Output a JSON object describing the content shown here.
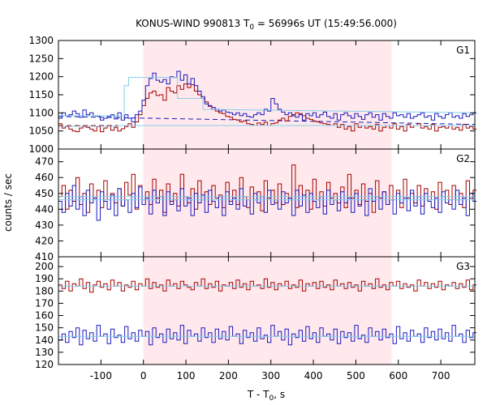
{
  "chart_data": {
    "type": "line",
    "title_main": "KONUS-WIND 990813 T",
    "title_sub": "0",
    "title_rest": " = 56996s UT (15:49:56.000)",
    "xlabel_main": "T - T",
    "xlabel_sub": "0",
    "xlabel_rest": ", s",
    "ylabel": "counts / sec",
    "xlim": [
      -200,
      780
    ],
    "xticks": [
      -100,
      0,
      100,
      200,
      300,
      400,
      500,
      600,
      700
    ],
    "xtick_labels": [
      "-100",
      "0",
      "100",
      "200",
      "300",
      "400",
      "500",
      "600",
      "700"
    ],
    "shaded_interval": [
      0,
      584
    ],
    "colors": {
      "red": "#a50000",
      "blue": "#1a1abf",
      "fit": "#87ceeb",
      "shade": "#ffe9ec"
    },
    "bin_width": 8.2,
    "x_start": -200,
    "panels": [
      {
        "label": "G1",
        "ylim": [
          1000,
          1300
        ],
        "yticks": [
          1000,
          1050,
          1100,
          1150,
          1200,
          1250,
          1300
        ],
        "ytick_labels": [
          "1000",
          "1050",
          "1100",
          "1150",
          "1200",
          "1250",
          "1300"
        ],
        "red_fit": [
          [
            -200,
            1063
          ],
          [
            -60,
            1063
          ],
          [
            -60,
            1065
          ],
          [
            780,
            1065
          ]
        ],
        "blue_fit": [
          [
            -200,
            1092
          ],
          [
            -45,
            1092
          ],
          [
            -45,
            1175
          ],
          [
            -35,
            1175
          ],
          [
            -35,
            1198
          ],
          [
            80,
            1198
          ],
          [
            80,
            1140
          ],
          [
            140,
            1140
          ],
          [
            140,
            1110
          ],
          [
            780,
            1100
          ]
        ],
        "red_background": [
          [
            -200,
            1065
          ],
          [
            780,
            1065
          ]
        ],
        "blue_background": [
          [
            -200,
            1090
          ],
          [
            780,
            1068
          ]
        ],
        "red": [
          1070,
          1058,
          1062,
          1055,
          1050,
          1048,
          1058,
          1062,
          1060,
          1055,
          1050,
          1062,
          1048,
          1058,
          1065,
          1052,
          1060,
          1050,
          1056,
          1062,
          1070,
          1060,
          1075,
          1095,
          1120,
          1140,
          1155,
          1160,
          1148,
          1150,
          1135,
          1170,
          1160,
          1155,
          1175,
          1165,
          1180,
          1170,
          1178,
          1160,
          1150,
          1140,
          1130,
          1118,
          1110,
          1105,
          1100,
          1098,
          1090,
          1088,
          1082,
          1080,
          1075,
          1078,
          1070,
          1068,
          1065,
          1072,
          1068,
          1074,
          1065,
          1070,
          1072,
          1080,
          1085,
          1078,
          1090,
          1095,
          1100,
          1098,
          1092,
          1085,
          1082,
          1078,
          1075,
          1072,
          1070,
          1068,
          1065,
          1070,
          1060,
          1068,
          1055,
          1062,
          1050,
          1070,
          1060,
          1065,
          1058,
          1062,
          1055,
          1068,
          1050,
          1060,
          1065,
          1058,
          1070,
          1055,
          1062,
          1050,
          1068,
          1060,
          1065,
          1070,
          1058,
          1062,
          1055,
          1068,
          1050,
          1060,
          1062,
          1058,
          1065,
          1055,
          1060,
          1052,
          1068,
          1058,
          1062,
          1055
        ],
        "blue": [
          1085,
          1100,
          1092,
          1095,
          1105,
          1098,
          1088,
          1108,
          1095,
          1100,
          1092,
          1090,
          1080,
          1085,
          1090,
          1095,
          1083,
          1100,
          1080,
          1095,
          1085,
          1075,
          1095,
          1105,
          1135,
          1175,
          1195,
          1210,
          1190,
          1185,
          1192,
          1180,
          1200,
          1198,
          1215,
          1190,
          1205,
          1180,
          1195,
          1175,
          1160,
          1145,
          1125,
          1120,
          1115,
          1110,
          1105,
          1108,
          1102,
          1100,
          1095,
          1100,
          1092,
          1098,
          1090,
          1088,
          1095,
          1100,
          1095,
          1110,
          1105,
          1140,
          1125,
          1110,
          1102,
          1095,
          1100,
          1092,
          1088,
          1095,
          1080,
          1098,
          1092,
          1100,
          1088,
          1095,
          1102,
          1090,
          1085,
          1098,
          1080,
          1095,
          1100,
          1092,
          1085,
          1098,
          1090,
          1082,
          1095,
          1100,
          1088,
          1095,
          1080,
          1098,
          1090,
          1085,
          1100,
          1092,
          1095,
          1088,
          1098,
          1085,
          1090,
          1095,
          1100,
          1088,
          1092,
          1080,
          1098,
          1090,
          1085,
          1095,
          1100,
          1088,
          1092,
          1085,
          1098,
          1090,
          1095,
          1100
        ]
      },
      {
        "label": "G2",
        "ylim": [
          410,
          478
        ],
        "yticks": [
          410,
          420,
          430,
          440,
          450,
          460,
          470
        ],
        "ytick_labels": [
          "410",
          "420",
          "430",
          "440",
          "450",
          "460",
          "470"
        ],
        "red_fit": [
          [
            -200,
            448
          ],
          [
            780,
            448
          ]
        ],
        "blue_fit": [
          [
            -200,
            446
          ],
          [
            780,
            446
          ]
        ],
        "red": [
          448,
          455,
          440,
          452,
          445,
          460,
          443,
          450,
          438,
          456,
          447,
          452,
          441,
          458,
          446,
          450,
          444,
          453,
          442,
          457,
          449,
          462,
          440,
          455,
          446,
          451,
          443,
          459,
          447,
          452,
          438,
          456,
          445,
          450,
          442,
          462,
          448,
          444,
          453,
          440,
          458,
          446,
          451,
          443,
          455,
          447,
          449,
          441,
          457,
          445,
          452,
          443,
          460,
          448,
          441,
          454,
          446,
          451,
          439,
          458,
          447,
          452,
          444,
          456,
          443,
          450,
          446,
          468,
          441,
          455,
          448,
          452,
          440,
          459,
          446,
          451,
          442,
          457,
          447,
          450,
          444,
          454,
          441,
          462,
          447,
          452,
          443,
          456,
          445,
          450,
          438,
          458,
          447,
          451,
          443,
          455,
          446,
          452,
          441,
          459,
          447,
          450,
          444,
          455,
          442,
          453,
          446,
          451,
          440,
          457,
          448,
          452,
          443,
          455,
          446,
          450,
          441,
          458,
          447,
          452
        ],
        "blue": [
          445,
          438,
          450,
          442,
          455,
          440,
          448,
          436,
          452,
          444,
          447,
          433,
          451,
          445,
          440,
          449,
          436,
          453,
          442,
          446,
          438,
          450,
          441,
          454,
          443,
          447,
          437,
          452,
          444,
          448,
          436,
          451,
          443,
          446,
          439,
          453,
          442,
          447,
          436,
          450,
          444,
          449,
          438,
          452,
          445,
          441,
          448,
          436,
          451,
          443,
          447,
          440,
          453,
          442,
          446,
          437,
          450,
          444,
          448,
          438,
          452,
          443,
          446,
          440,
          451,
          444,
          447,
          436,
          452,
          442,
          449,
          438,
          450,
          445,
          441,
          448,
          437,
          452,
          443,
          446,
          439,
          451,
          444,
          447,
          438,
          450,
          442,
          446,
          436,
          453,
          445,
          448,
          440,
          451,
          443,
          446,
          437,
          450,
          444,
          447,
          439,
          452,
          442,
          448,
          437,
          450,
          445,
          441,
          447,
          438,
          451,
          444,
          446,
          440,
          452,
          443,
          447,
          436,
          450,
          445
        ]
      },
      {
        "label": "G3",
        "ylim": [
          120,
          208
        ],
        "yticks": [
          120,
          130,
          140,
          150,
          160,
          170,
          180,
          190,
          200
        ],
        "ytick_labels": [
          "120",
          "130",
          "140",
          "150",
          "160",
          "170",
          "180",
          "190",
          "200"
        ],
        "red_fit": [
          [
            -200,
            184
          ],
          [
            780,
            184
          ]
        ],
        "blue_fit": [
          [
            -200,
            143
          ],
          [
            780,
            143
          ]
        ],
        "red": [
          185,
          182,
          188,
          180,
          186,
          184,
          190,
          182,
          187,
          179,
          185,
          188,
          183,
          186,
          181,
          189,
          184,
          187,
          180,
          185,
          183,
          188,
          181,
          186,
          184,
          190,
          182,
          187,
          183,
          185,
          180,
          189,
          184,
          186,
          182,
          188,
          185,
          183,
          181,
          187,
          184,
          190,
          182,
          186,
          183,
          188,
          180,
          185,
          184,
          187,
          182,
          189,
          183,
          186,
          181,
          188,
          184,
          185,
          182,
          190,
          183,
          187,
          181,
          186,
          184,
          188,
          182,
          185,
          183,
          189,
          180,
          186,
          184,
          187,
          182,
          188,
          183,
          185,
          181,
          189,
          184,
          186,
          182,
          187,
          183,
          185,
          180,
          188,
          184,
          186,
          182,
          190,
          183,
          185,
          181,
          187,
          184,
          188,
          182,
          186,
          183,
          185,
          180,
          189,
          184,
          187,
          182,
          186,
          183,
          188,
          181,
          185,
          184,
          187,
          182,
          186,
          183,
          189,
          181,
          185
        ],
        "blue": [
          140,
          145,
          138,
          147,
          142,
          150,
          136,
          148,
          141,
          146,
          139,
          152,
          143,
          145,
          137,
          149,
          142,
          144,
          138,
          151,
          141,
          146,
          139,
          148,
          143,
          147,
          136,
          150,
          142,
          145,
          138,
          149,
          141,
          146,
          140,
          152,
          137,
          148,
          143,
          145,
          139,
          150,
          142,
          146,
          138,
          149,
          141,
          147,
          140,
          151,
          143,
          145,
          137,
          148,
          142,
          146,
          139,
          150,
          141,
          144,
          138,
          152,
          143,
          147,
          140,
          149,
          136,
          145,
          142,
          148,
          139,
          151,
          141,
          146,
          138,
          150,
          143,
          145,
          140,
          149,
          137,
          147,
          142,
          146,
          139,
          152,
          141,
          144,
          138,
          150,
          143,
          147,
          140,
          149,
          142,
          145,
          137,
          151,
          141,
          146,
          139,
          148,
          143,
          145,
          138,
          150,
          142,
          147,
          140,
          149,
          141,
          146,
          139,
          152,
          143,
          145,
          138,
          148,
          142,
          146
        ]
      }
    ]
  }
}
